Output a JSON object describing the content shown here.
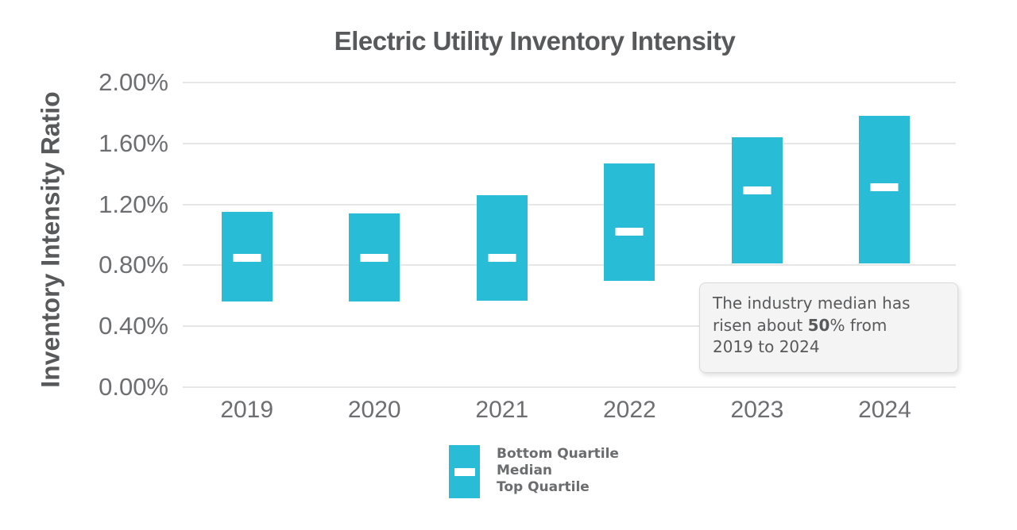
{
  "chart_data": {
    "type": "bar",
    "subtype": "floating-quartile-range-bars",
    "title": "Electric Utility Inventory Intensity",
    "ylabel": "Inventory Intensity Ratio",
    "xlabel": "",
    "categories": [
      "2019",
      "2020",
      "2021",
      "2022",
      "2023",
      "2024"
    ],
    "series": [
      {
        "name": "Top Quartile",
        "values": [
          1.15,
          1.14,
          1.26,
          1.47,
          1.64,
          1.78
        ]
      },
      {
        "name": "Median",
        "values": [
          0.85,
          0.85,
          0.85,
          1.02,
          1.29,
          1.31
        ]
      },
      {
        "name": "Bottom Quartile",
        "values": [
          0.56,
          0.56,
          0.57,
          0.7,
          0.81,
          0.81
        ]
      }
    ],
    "value_unit": "percent",
    "ylim": [
      0,
      2.0
    ],
    "yticks": [
      {
        "value": 0.0,
        "label": "0.00%"
      },
      {
        "value": 0.4,
        "label": "0.40%"
      },
      {
        "value": 0.8,
        "label": "0.80%"
      },
      {
        "value": 1.2,
        "label": "1.20%"
      },
      {
        "value": 1.6,
        "label": "1.60%"
      },
      {
        "value": 2.0,
        "label": "2.00%"
      }
    ],
    "grid": true,
    "legend_position": "bottom-center",
    "legend_items": [
      "Bottom Quartile",
      "Median",
      "Top Quartile"
    ],
    "annotation": {
      "line1": "The industry median has",
      "line2_pre": "risen about ",
      "line2_bold": "50",
      "line2_post": "% from",
      "line3": "2019 to 2024"
    },
    "colors": {
      "bar": "#29BCD6",
      "median_dash": "#FFFFFF",
      "grid": "#E6E6E6",
      "title_text": "#58595B",
      "axis_text": "#6D6E71",
      "annotation_bg": "#F4F4F4",
      "annotation_border": "#DADADA",
      "annotation_text": "#58595B"
    }
  }
}
